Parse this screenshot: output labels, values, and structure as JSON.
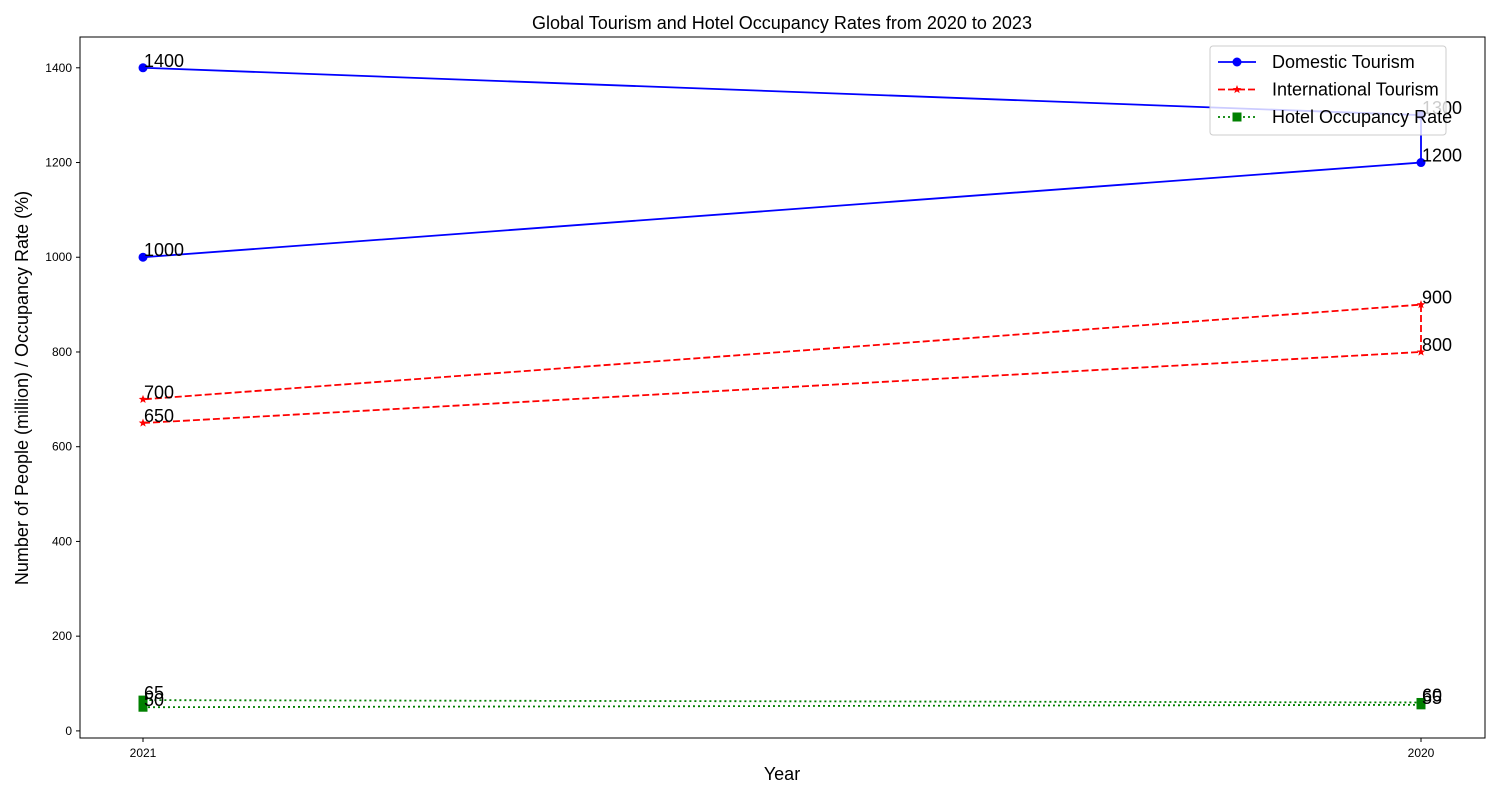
{
  "chart_data": {
    "type": "line",
    "title": "Global Tourism and Hotel Occupancy Rates from 2020 to 2023",
    "xlabel": "Year",
    "ylabel": "Number of People (million) / Occupancy Rate (%)",
    "ylim": [
      -15,
      1465
    ],
    "yticks": [
      0,
      200,
      400,
      600,
      800,
      1000,
      1200,
      1400
    ],
    "xticks": [
      "2021",
      "2020"
    ],
    "x": [
      "2021",
      "2020",
      "2020",
      "2021"
    ],
    "grid": false,
    "legend_position": "top-right",
    "series": [
      {
        "name": "Domestic Tourism",
        "values": [
          1000,
          1200,
          1300,
          1400
        ],
        "color": "#0000ff",
        "linestyle": "solid",
        "marker": "circle"
      },
      {
        "name": "International Tourism",
        "values": [
          650,
          800,
          900,
          700
        ],
        "color": "#ff0000",
        "linestyle": "dashed",
        "marker": "star"
      },
      {
        "name": "Hotel Occupancy Rate",
        "values": [
          50,
          55,
          60,
          65
        ],
        "color": "#008000",
        "linestyle": "dotted",
        "marker": "square"
      }
    ]
  }
}
